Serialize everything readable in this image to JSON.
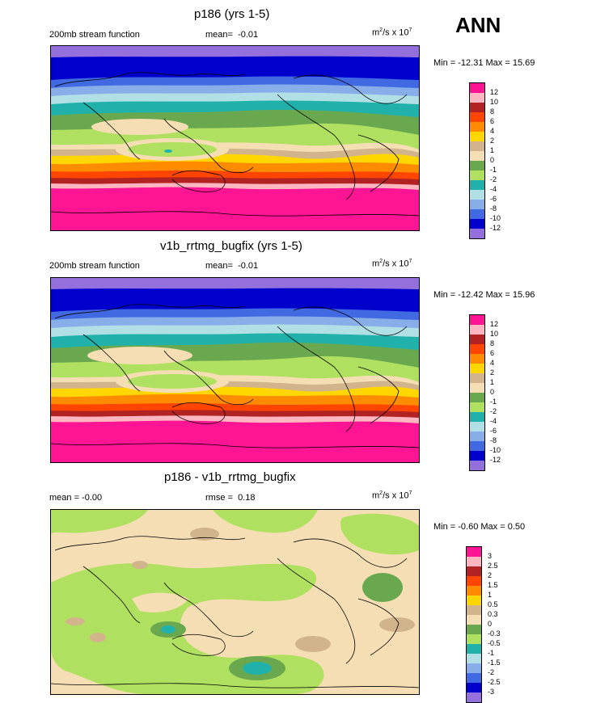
{
  "header": {
    "season": "ANN"
  },
  "panels": [
    {
      "title": "p186 (yrs 1-5)",
      "left_label": "200mb stream function",
      "mean_label": "mean=",
      "mean_value": "-0.01",
      "units_prefix": "m",
      "units_exp1": "2",
      "units_mid": "/s x 10",
      "units_exp2": "7",
      "minmax": "Min = -12.31 Max =  15.69",
      "colorbar": {
        "colors": [
          "#ff1493",
          "#ffb6c1",
          "#b22222",
          "#ff4500",
          "#ff8c00",
          "#ffd700",
          "#d2b48c",
          "#f5deb3",
          "#6aa84f",
          "#b0e060",
          "#20b2aa",
          "#b0e0e6",
          "#87aee8",
          "#4169e1",
          "#0000cd",
          "#9370db"
        ],
        "labels": [
          "12",
          "10",
          "8",
          "6",
          "4",
          "2",
          "1",
          "0",
          "-1",
          "-2",
          "-4",
          "-6",
          "-8",
          "-10",
          "-12"
        ]
      }
    },
    {
      "title": "v1b_rrtmg_bugfix (yrs 1-5)",
      "left_label": "200mb stream function",
      "mean_label": "mean=",
      "mean_value": "-0.01",
      "units_prefix": "m",
      "units_exp1": "2",
      "units_mid": "/s x 10",
      "units_exp2": "7",
      "minmax": "Min = -12.42 Max =  15.96",
      "colorbar": {
        "colors": [
          "#ff1493",
          "#ffb6c1",
          "#b22222",
          "#ff4500",
          "#ff8c00",
          "#ffd700",
          "#d2b48c",
          "#f5deb3",
          "#6aa84f",
          "#b0e060",
          "#20b2aa",
          "#b0e0e6",
          "#87aee8",
          "#4169e1",
          "#0000cd",
          "#9370db"
        ],
        "labels": [
          "12",
          "10",
          "8",
          "6",
          "4",
          "2",
          "1",
          "0",
          "-1",
          "-2",
          "-4",
          "-6",
          "-8",
          "-10",
          "-12"
        ]
      }
    },
    {
      "title": "p186 - v1b_rrtmg_bugfix",
      "left_label": "mean =  -0.00",
      "mean_label": "rmse =",
      "mean_value": "0.18",
      "units_prefix": "m",
      "units_exp1": "2",
      "units_mid": "/s x 10",
      "units_exp2": "7",
      "minmax": "Min =  -0.60 Max =   0.50",
      "colorbar": {
        "colors": [
          "#ff1493",
          "#ffb6c1",
          "#b22222",
          "#ff4500",
          "#ff8c00",
          "#ffd700",
          "#d2b48c",
          "#f5deb3",
          "#6aa84f",
          "#b0e060",
          "#20b2aa",
          "#b0e0e6",
          "#87aee8",
          "#4169e1",
          "#0000cd",
          "#9370db"
        ],
        "labels": [
          "3",
          "2.5",
          "2",
          "1.5",
          "1",
          "0.5",
          "0.3",
          "0",
          "-0.3",
          "-0.5",
          "-1",
          "-1.5",
          "-2",
          "-2.5",
          "-3"
        ]
      }
    }
  ]
}
